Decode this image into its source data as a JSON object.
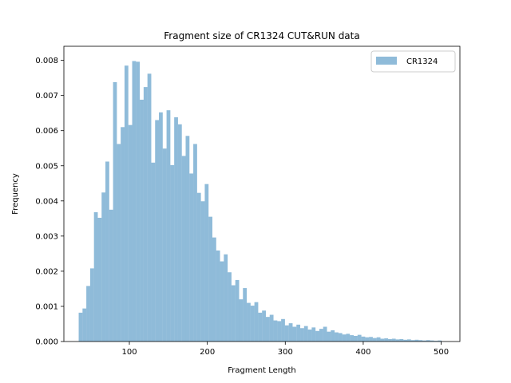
{
  "chart_data": {
    "type": "bar",
    "title": "Fragment size of CR1324 CUT&RUN data",
    "xlabel": "Fragment Length",
    "ylabel": "Frequency",
    "xlim": [
      16,
      524
    ],
    "ylim": [
      0,
      0.0084
    ],
    "x_ticks": [
      100,
      200,
      300,
      400,
      500
    ],
    "y_ticks": [
      0.0,
      0.001,
      0.002,
      0.003,
      0.004,
      0.005,
      0.006,
      0.007,
      0.008
    ],
    "y_tick_labels": [
      "0.000",
      "0.001",
      "0.002",
      "0.003",
      "0.004",
      "0.005",
      "0.006",
      "0.007",
      "0.008"
    ],
    "legend_position": "top-right",
    "series": [
      {
        "name": "CR1324",
        "color": "#1f77b4",
        "alpha": 0.5,
        "bin_edges": [
          35.0,
          39.9,
          44.8,
          49.7,
          54.6,
          59.5,
          64.4,
          69.3,
          74.2,
          79.1,
          84.0,
          88.9,
          93.8,
          98.7,
          103.6,
          108.5,
          113.4,
          118.3,
          123.2,
          128.1,
          133.0,
          137.9,
          142.8,
          147.7,
          152.6,
          157.5,
          162.4,
          167.3,
          172.2,
          177.1,
          182.0,
          186.9,
          191.8,
          196.7,
          201.6,
          206.5,
          211.4,
          216.3,
          221.2,
          226.1,
          231.0,
          235.9,
          240.8,
          245.7,
          250.6,
          255.5,
          260.4,
          265.3,
          270.2,
          275.1,
          280.0,
          284.9,
          289.8,
          294.7,
          299.6,
          304.5,
          309.4,
          314.3,
          319.2,
          324.1,
          329.0,
          333.9,
          338.8,
          343.7,
          348.6,
          353.5,
          358.4,
          363.3,
          368.2,
          373.1,
          378.0,
          382.9,
          387.8,
          392.7,
          397.6,
          402.5,
          407.4,
          412.3,
          417.2,
          422.1,
          427.0,
          431.9,
          436.8,
          441.7,
          446.6,
          451.5,
          456.4,
          461.3,
          466.2,
          471.1,
          476.0,
          480.9,
          485.8,
          490.7,
          495.6,
          500.5
        ],
        "values": [
          0.00082,
          0.00094,
          0.00158,
          0.00208,
          0.00368,
          0.00352,
          0.00424,
          0.00512,
          0.00375,
          0.00738,
          0.00562,
          0.0061,
          0.00785,
          0.00616,
          0.00798,
          0.00796,
          0.00688,
          0.00724,
          0.00762,
          0.00509,
          0.0063,
          0.00652,
          0.00549,
          0.00658,
          0.00502,
          0.00638,
          0.00618,
          0.00528,
          0.00585,
          0.00478,
          0.00562,
          0.00423,
          0.00399,
          0.00448,
          0.00355,
          0.00296,
          0.00259,
          0.00228,
          0.00248,
          0.00197,
          0.0016,
          0.00175,
          0.0012,
          0.00152,
          0.0011,
          0.00102,
          0.00112,
          0.00082,
          0.00088,
          0.0007,
          0.00076,
          0.0006,
          0.00058,
          0.00064,
          0.00046,
          0.00052,
          0.00042,
          0.00048,
          0.00038,
          0.00044,
          0.00034,
          0.0004,
          0.0003,
          0.00036,
          0.00042,
          0.00028,
          0.00032,
          0.00026,
          0.00024,
          0.0002,
          0.00022,
          0.00018,
          0.00016,
          0.00019,
          0.00014,
          0.00012,
          0.00013,
          0.0001,
          0.00012,
          8e-05,
          9e-05,
          7e-05,
          8e-05,
          6e-05,
          7e-05,
          5e-05,
          6e-05,
          4e-05,
          5e-05,
          4e-05,
          3e-05,
          4e-05,
          3e-05,
          2e-05,
          3e-05,
          2e-05
        ]
      }
    ]
  }
}
